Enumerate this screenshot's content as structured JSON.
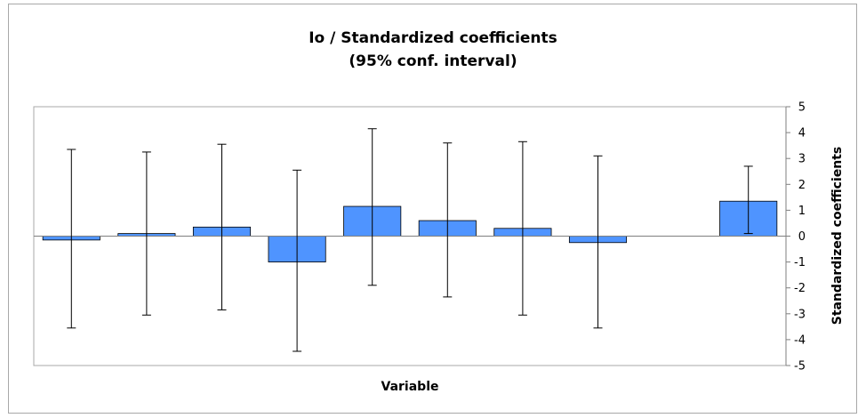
{
  "chart_data": {
    "type": "bar",
    "title_line1": "Io / Standardized coefficients",
    "title_line2": "(95% conf. interval)",
    "xlabel": "Variable",
    "ylabel": "Standardized coefficients",
    "ylim": [
      -5,
      5
    ],
    "yticks": [
      5,
      4,
      3,
      2,
      1,
      0,
      -1,
      -2,
      -3,
      -4,
      -5
    ],
    "y_axis_position": "right",
    "grid": false,
    "bar_color": "#4f94ff",
    "values": [
      -0.15,
      0.1,
      0.35,
      -1.0,
      1.15,
      0.6,
      0.3,
      -0.25,
      null,
      1.35
    ],
    "ci_low": [
      -3.55,
      -3.05,
      -2.85,
      -4.45,
      -1.9,
      -2.35,
      -3.05,
      -3.55,
      null,
      0.1
    ],
    "ci_high": [
      3.35,
      3.25,
      3.55,
      2.55,
      4.15,
      3.6,
      3.65,
      3.1,
      null,
      2.7
    ]
  }
}
